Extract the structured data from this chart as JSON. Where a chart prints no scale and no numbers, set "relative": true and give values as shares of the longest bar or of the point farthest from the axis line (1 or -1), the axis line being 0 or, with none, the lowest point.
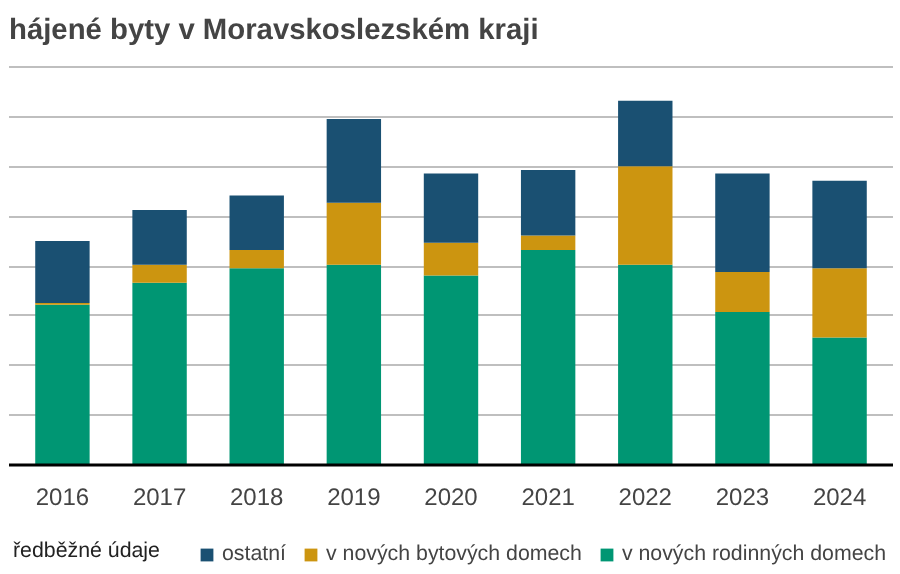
{
  "chart_data": {
    "type": "bar",
    "title": "hájené byty v Moravskoslezském  kraji",
    "stacked": true,
    "relative": true,
    "grid": "y",
    "legend": "bottom",
    "categories": [
      "2016",
      "2017",
      "2018",
      "2019",
      "2020",
      "2021",
      "2022",
      "2023",
      "2024"
    ],
    "series": [
      {
        "name": "v nových rodinných domech",
        "color": "#009673",
        "values": [
          0.44,
          0.5,
          0.54,
          0.55,
          0.52,
          0.59,
          0.55,
          0.42,
          0.35
        ]
      },
      {
        "name": "v nových bytových domech",
        "color": "#cc9510",
        "values": [
          0.005,
          0.05,
          0.05,
          0.17,
          0.09,
          0.04,
          0.27,
          0.11,
          0.19
        ]
      },
      {
        "name": "ostatní",
        "color": "#1a5072",
        "values": [
          0.17,
          0.15,
          0.15,
          0.23,
          0.19,
          0.18,
          0.18,
          0.27,
          0.24
        ]
      }
    ],
    "annotations": [
      "ředběžné údaje"
    ]
  }
}
